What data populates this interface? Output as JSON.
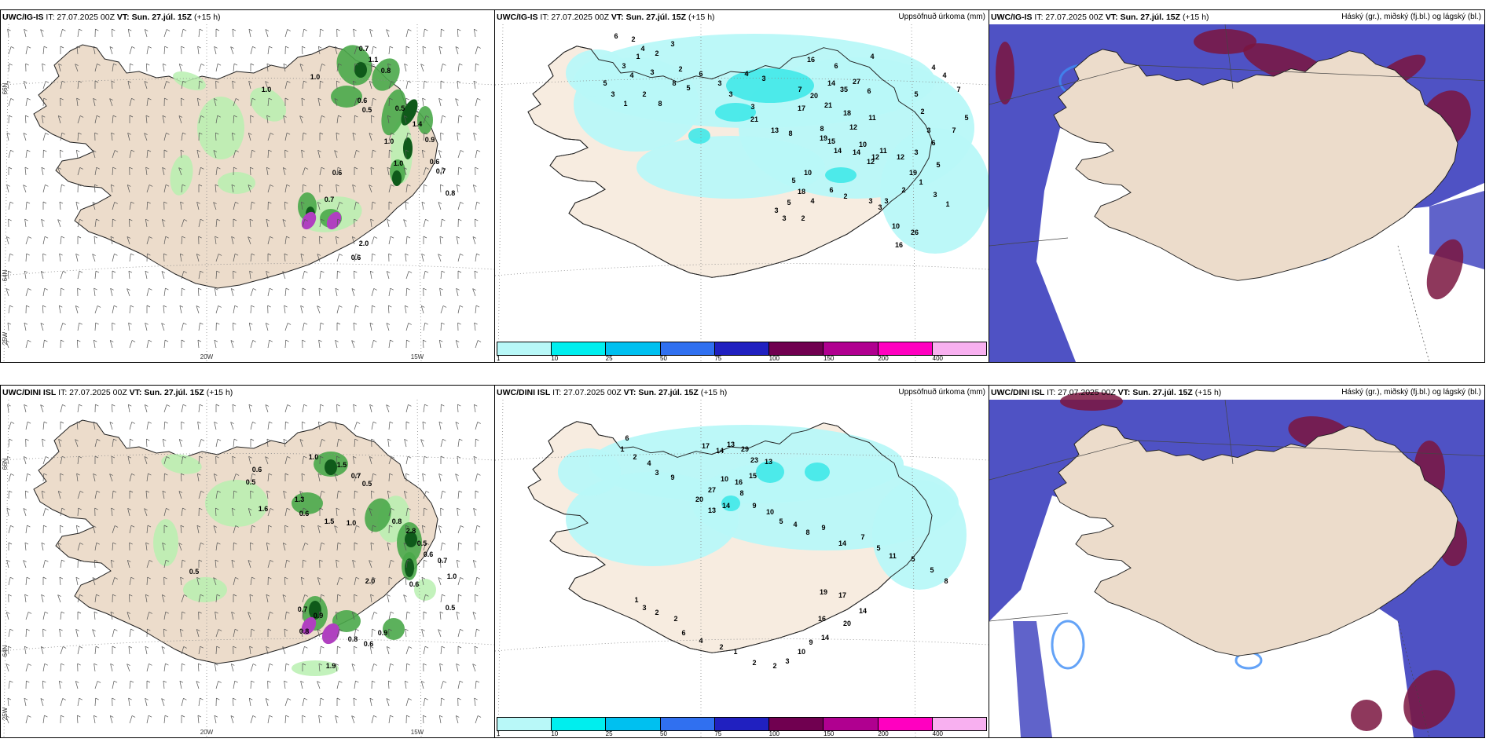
{
  "header": {
    "vt_label": "VT:",
    "vt_value": "Sun. 27.júl. 15Z",
    "lead": "(+15 h)"
  },
  "rows": [
    {
      "model": "UWC/IG-IS",
      "it": "IT: 27.07.2025 00Z"
    },
    {
      "model": "UWC/DINI ISL",
      "it": "IT: 27.07.2025 00Z"
    }
  ],
  "panel_titles": {
    "precip": "Uppsöfnuð úrkoma (mm)",
    "cloud": "Háský (gr.), miðský (fj.bl.) og lágský (bl.)"
  },
  "axis_labels": {
    "lat_66": "66N",
    "lat_64": "64N",
    "lon_20": "20W",
    "lon_15": "15W",
    "lon_25": "25W"
  },
  "colorbar": {
    "ticks": [
      "1",
      "10",
      "25",
      "50",
      "75",
      "100",
      "150",
      "200",
      "400"
    ],
    "colors": [
      "#b8f8f8",
      "#00eeee",
      "#00c0f0",
      "#3070f0",
      "#2020c0",
      "#700050",
      "#b00090",
      "#ff00c0",
      "#f8b0f0"
    ]
  },
  "colors": {
    "land": "#ecdccb",
    "precip_light": "#b8f8f8",
    "precip_mid": "#40e8e8",
    "shower_light": "#b8f0b0",
    "shower_mid": "#4aa84a",
    "shower_dark": "#0f5a1a",
    "high_cloud": "#4f52c4",
    "mid_cloud": "#7a1540",
    "low_cloud": "#3d8cf5"
  },
  "precip_labels": [
    [
      "6",
      "2",
      "4",
      "2",
      "3",
      "2",
      "1",
      "3",
      "4",
      "3",
      "5",
      "3",
      "1",
      "2",
      "8",
      "8",
      "5",
      "6",
      "3",
      "3",
      "4",
      "3",
      "3",
      "16",
      "6",
      "21",
      "13",
      "7",
      "20",
      "17",
      "14",
      "35",
      "21",
      "18",
      "27",
      "4",
      "6",
      "11",
      "12",
      "8",
      "15",
      "10",
      "12",
      "8",
      "19",
      "14",
      "14",
      "11",
      "12",
      "3",
      "6",
      "7",
      "5",
      "7",
      "4",
      "4",
      "5",
      "2",
      "3",
      "10",
      "6",
      "12",
      "19",
      "5",
      "18",
      "4",
      "5",
      "3",
      "3",
      "2",
      "2",
      "3",
      "2",
      "1",
      "5",
      "3",
      "10",
      "26",
      "16",
      "3",
      "3",
      "1"
    ],
    [
      "6",
      "1",
      "2",
      "4",
      "3",
      "9",
      "17",
      "14",
      "13",
      "29",
      "23",
      "13",
      "15",
      "16",
      "10",
      "27",
      "20",
      "13",
      "14",
      "8",
      "9",
      "10",
      "5",
      "4",
      "8",
      "9",
      "14",
      "7",
      "5",
      "11",
      "5",
      "5",
      "8",
      "19",
      "17",
      "14",
      "20",
      "16",
      "14",
      "9",
      "10",
      "3",
      "2",
      "2",
      "1",
      "2",
      "4",
      "6",
      "2",
      "2",
      "3",
      "1"
    ]
  ],
  "shower_labels": [
    [
      "0.7",
      "1.1",
      "0.8",
      "1.0",
      "1.0",
      "0.6",
      "0.5",
      "0.5",
      "1.4",
      "1.0",
      "1.0",
      "0.6",
      "0.9",
      "0.6",
      "0.7",
      "0.8",
      "0.7",
      "2.0",
      "0.6"
    ],
    [
      "1.0",
      "1.5",
      "0.7",
      "0.5",
      "0.6",
      "0.5",
      "1.3",
      "0.6",
      "1.5",
      "1.0",
      "0.8",
      "2.8",
      "0.5",
      "0.6",
      "0.7",
      "1.0",
      "2.0",
      "0.6",
      "0.5",
      "0.7",
      "0.9",
      "0.8",
      "0.8",
      "0.9",
      "1.6",
      "0.5",
      "0.6",
      "1.9"
    ]
  ]
}
